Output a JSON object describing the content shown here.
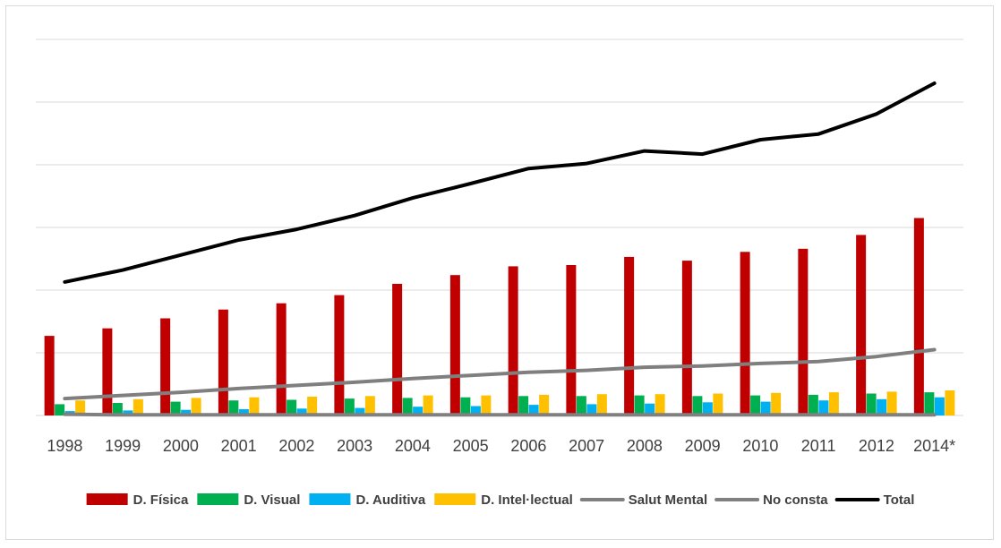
{
  "chart_data": {
    "type": "bar",
    "categories": [
      "1998",
      "1999",
      "2000",
      "2001",
      "2002",
      "2003",
      "2004",
      "2005",
      "2006",
      "2007",
      "2008",
      "2009",
      "2010",
      "2011",
      "2012",
      "2014*"
    ],
    "ylim": [
      0,
      6
    ],
    "grid": true,
    "y_ticks_labeled": false,
    "legend_position": "bottom",
    "series": [
      {
        "name": "D. Física",
        "kind": "bar",
        "color": "#c00000",
        "values": [
          1.27,
          1.39,
          1.55,
          1.69,
          1.79,
          1.92,
          2.1,
          2.24,
          2.38,
          2.4,
          2.53,
          2.47,
          2.61,
          2.66,
          2.88,
          3.15
        ]
      },
      {
        "name": "D. Visual",
        "kind": "bar",
        "color": "#00b050",
        "values": [
          0.18,
          0.2,
          0.22,
          0.24,
          0.25,
          0.27,
          0.28,
          0.29,
          0.31,
          0.31,
          0.32,
          0.31,
          0.32,
          0.33,
          0.35,
          0.37
        ]
      },
      {
        "name": "D. Auditiva",
        "kind": "bar",
        "color": "#00b0f0",
        "values": [
          0.07,
          0.08,
          0.09,
          0.1,
          0.11,
          0.12,
          0.14,
          0.15,
          0.17,
          0.18,
          0.19,
          0.21,
          0.22,
          0.24,
          0.26,
          0.29
        ]
      },
      {
        "name": "D. Intel·lectual",
        "kind": "bar",
        "color": "#ffc000",
        "values": [
          0.24,
          0.26,
          0.28,
          0.29,
          0.3,
          0.31,
          0.32,
          0.32,
          0.33,
          0.34,
          0.34,
          0.35,
          0.36,
          0.37,
          0.38,
          0.4
        ]
      },
      {
        "name": "Salut Mental",
        "kind": "line",
        "color": "#7f7f7f",
        "values": [
          0.27,
          0.32,
          0.37,
          0.43,
          0.48,
          0.53,
          0.59,
          0.64,
          0.69,
          0.72,
          0.77,
          0.79,
          0.83,
          0.86,
          0.94,
          1.05
        ]
      },
      {
        "name": "No consta",
        "kind": "line",
        "color": "#808080",
        "values": [
          0.02,
          0.01,
          0.01,
          0.01,
          0.01,
          0.01,
          0.01,
          0.01,
          0.01,
          0.01,
          0.01,
          0.01,
          0.01,
          0.01,
          0.01,
          0.01
        ]
      },
      {
        "name": "Total",
        "kind": "line",
        "color": "#000000",
        "values": [
          2.13,
          2.32,
          2.56,
          2.8,
          2.97,
          3.19,
          3.47,
          3.7,
          3.94,
          4.02,
          4.22,
          4.17,
          4.4,
          4.49,
          4.81,
          5.3
        ]
      }
    ]
  }
}
